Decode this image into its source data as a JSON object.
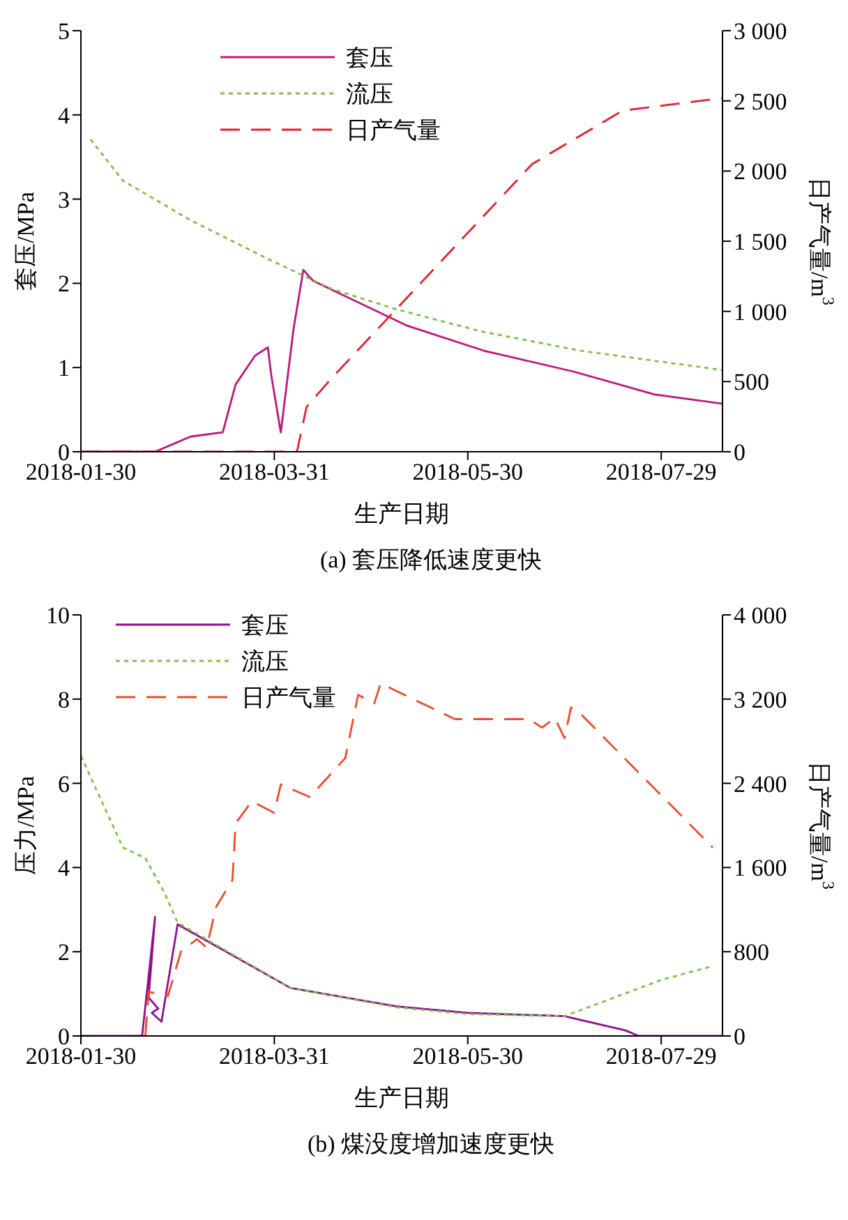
{
  "chart_data": [
    {
      "type": "line",
      "xlabel": "生产日期",
      "ylabel": "套压/MPa",
      "y2label": "日产气量/m$^{3}$",
      "annotations": [
        "(a) 套压降低速度更快"
      ],
      "legend": "top left",
      "xlim": [
        "2018-01-30",
        "2018-08-17"
      ],
      "xticks": [
        {
          "value": "2018-01-30",
          "label": "2018-01-30"
        },
        {
          "value": "2018-03-31",
          "label": "2018-03-31"
        },
        {
          "value": "2018-05-30",
          "label": "2018-05-30"
        },
        {
          "value": "2018-07-29",
          "label": "2018-07-29"
        }
      ],
      "ylim": [
        0,
        5
      ],
      "yticks": [
        0,
        1,
        2,
        3,
        4,
        5
      ],
      "y2lim": [
        0,
        3000
      ],
      "y2ticks": [
        0,
        500,
        {
          "value": 1000,
          "label": "1 000"
        },
        {
          "value": 1500,
          "label": "1 500"
        },
        {
          "value": 2000,
          "label": "2 000"
        },
        {
          "value": 2500,
          "label": "2 500"
        },
        {
          "value": 3000,
          "label": "3 000"
        }
      ],
      "series": [
        {
          "name": "套压",
          "color": "#c0157e",
          "line_style": "solid",
          "x": [
            "2018-01-30",
            "2018-02-22",
            "2018-03-05",
            "2018-03-15",
            "2018-03-19",
            "2018-03-25",
            "2018-03-29",
            "2018-03-30",
            "2018-04-02",
            "2018-04-06",
            "2018-04-09",
            "2018-04-12",
            "2018-05-11",
            "2018-06-04",
            "2018-07-02",
            "2018-07-27",
            "2018-08-17"
          ],
          "values": [
            0,
            0,
            0.18,
            0.23,
            0.8,
            1.14,
            1.24,
            0.92,
            0.23,
            1.47,
            2.16,
            2.03,
            1.5,
            1.2,
            0.95,
            0.68,
            0.57
          ]
        },
        {
          "name": "流压",
          "color": "#7cc242",
          "line_style": "dotted",
          "x": [
            "2018-02-02",
            "2018-02-12",
            "2018-03-05",
            "2018-03-29",
            "2018-04-18",
            "2018-05-08",
            "2018-06-03",
            "2018-07-04",
            "2018-08-17"
          ],
          "values": [
            3.71,
            3.22,
            2.75,
            2.29,
            1.93,
            1.69,
            1.43,
            1.2,
            0.97
          ]
        },
        {
          "name": "日产气量",
          "color": "#e8202a",
          "line_style": "dashed",
          "axis": "y2",
          "x": [
            "2018-01-30",
            "2018-04-07",
            "2018-04-10",
            "2018-04-18",
            "2018-06-19",
            "2018-07-17",
            "2018-08-17"
          ],
          "values": [
            0,
            0,
            320,
            530,
            2050,
            2430,
            2520
          ]
        }
      ]
    },
    {
      "type": "line",
      "xlabel": "生产日期",
      "ylabel": "压力/MPa",
      "y2label": "日产气量/m$^{3}$",
      "annotations": [
        "(b) 煤没度增加速度更快"
      ],
      "legend": "top left",
      "xlim": [
        "2018-01-30",
        "2018-08-17"
      ],
      "xticks": [
        {
          "value": "2018-01-30",
          "label": "2018-01-30"
        },
        {
          "value": "2018-03-31",
          "label": "2018-03-31"
        },
        {
          "value": "2018-05-30",
          "label": "2018-05-30"
        },
        {
          "value": "2018-07-29",
          "label": "2018-07-29"
        }
      ],
      "ylim": [
        0,
        10
      ],
      "yticks": [
        0,
        2,
        4,
        6,
        8,
        10
      ],
      "y2lim": [
        0,
        4000
      ],
      "y2ticks": [
        0,
        800,
        {
          "value": 1600,
          "label": "1 600"
        },
        {
          "value": 2400,
          "label": "2 400"
        },
        {
          "value": 3200,
          "label": "3 200"
        },
        {
          "value": 4000,
          "label": "4 000"
        }
      ],
      "series": [
        {
          "name": "套压",
          "color": "#90108c",
          "line_style": "solid",
          "x": [
            "2018-01-30",
            "2018-02-18",
            "2018-02-22",
            "2018-02-20",
            "2018-02-23",
            "2018-02-21",
            "2018-02-24",
            "2018-03-01",
            "2018-04-05",
            "2018-05-08",
            "2018-05-30",
            "2018-06-29",
            "2018-07-18",
            "2018-07-22",
            "2018-08-17"
          ],
          "values": [
            0,
            0,
            2.83,
            0.91,
            0.65,
            0.55,
            0.34,
            2.65,
            1.14,
            0.7,
            0.55,
            0.47,
            0.13,
            0,
            0
          ]
        },
        {
          "name": "流压",
          "color": "#7cc242",
          "line_style": "dotted",
          "x": [
            "2018-01-30",
            "2018-02-12",
            "2018-02-19",
            "2018-02-25",
            "2018-03-01",
            "2018-04-05",
            "2018-05-08",
            "2018-05-30",
            "2018-06-29",
            "2018-07-29",
            "2018-08-14"
          ],
          "values": [
            6.65,
            4.48,
            4.22,
            3.39,
            2.69,
            1.14,
            0.68,
            0.52,
            0.47,
            1.33,
            1.66
          ]
        },
        {
          "name": "日产气量",
          "color": "#f04a2a",
          "line_style": "dashed",
          "axis": "y2",
          "x": [
            "2018-02-19",
            "2018-02-20",
            "2018-02-26",
            "2018-03-02",
            "2018-03-07",
            "2018-03-10",
            "2018-03-13",
            "2018-03-18",
            "2018-03-19",
            "2018-03-24",
            "2018-03-31",
            "2018-04-02",
            "2018-04-11",
            "2018-04-22",
            "2018-04-26",
            "2018-05-01",
            "2018-05-03",
            "2018-05-09",
            "2018-05-26",
            "2018-06-18",
            "2018-06-22",
            "2018-06-26",
            "2018-06-29",
            "2018-07-01",
            "2018-07-04",
            "2018-08-14"
          ],
          "values": [
            0,
            420,
            380,
            800,
            920,
            840,
            1230,
            1480,
            2020,
            2230,
            2120,
            2390,
            2270,
            2640,
            3240,
            3160,
            3350,
            3260,
            3010,
            3010,
            2930,
            3020,
            2830,
            3120,
            3060,
            1790
          ]
        }
      ]
    }
  ]
}
